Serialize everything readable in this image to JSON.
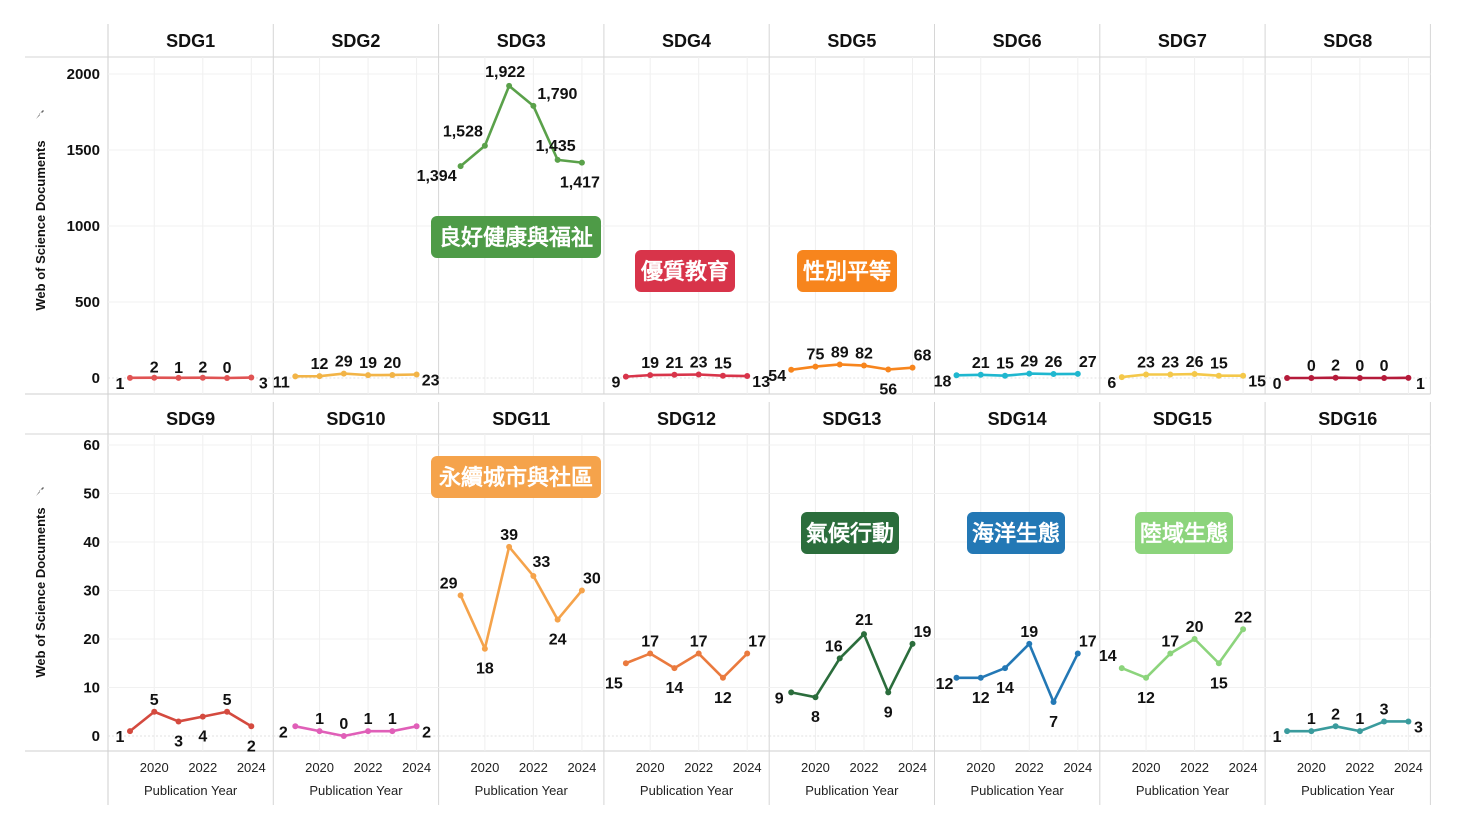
{
  "chart_data": {
    "type": "line",
    "x": [
      2019,
      2020,
      2021,
      2022,
      2023,
      2024
    ],
    "xticks": [
      "2020",
      "2022",
      "2024"
    ],
    "xlabel": "Publication Year",
    "ylabel": "Web of Science Documents",
    "grid": true,
    "rows": [
      {
        "ylim": [
          0,
          2100
        ],
        "yticks": [
          0,
          500,
          1000,
          1500,
          2000
        ],
        "panels": [
          {
            "title": "SDG1",
            "color": "#e05353",
            "values": [
              1,
              2,
              1,
              2,
              0,
              3
            ],
            "badge": "",
            "badge_color": ""
          },
          {
            "title": "SDG2",
            "color": "#f2b447",
            "values": [
              11,
              12,
              29,
              19,
              20,
              23
            ],
            "badge": "",
            "badge_color": ""
          },
          {
            "title": "SDG3",
            "color": "#5aa14a",
            "values": [
              1394,
              1528,
              1922,
              1790,
              1435,
              1417
            ],
            "badge": "良好健康與福祉",
            "badge_color": "#4e9b47"
          },
          {
            "title": "SDG4",
            "color": "#d8344a",
            "values": [
              9,
              19,
              21,
              23,
              15,
              13
            ],
            "badge": "優質教育",
            "badge_color": "#d8344a"
          },
          {
            "title": "SDG5",
            "color": "#f7851d",
            "values": [
              54,
              75,
              89,
              82,
              56,
              68
            ],
            "badge": "性別平等",
            "badge_color": "#f7851d"
          },
          {
            "title": "SDG6",
            "color": "#1fb7cf",
            "values": [
              18,
              21,
              15,
              29,
              26,
              27
            ],
            "badge": "",
            "badge_color": ""
          },
          {
            "title": "SDG7",
            "color": "#f4c84a",
            "values": [
              6,
              23,
              23,
              26,
              15,
              15
            ],
            "badge": "",
            "badge_color": ""
          },
          {
            "title": "SDG8",
            "color": "#b51a3a",
            "values": [
              0,
              0,
              2,
              0,
              0,
              1
            ],
            "badge": "",
            "badge_color": ""
          }
        ]
      },
      {
        "ylim": [
          -2,
          62
        ],
        "yticks": [
          0,
          10,
          20,
          30,
          40,
          50,
          60
        ],
        "panels": [
          {
            "title": "SDG9",
            "color": "#d44a3f",
            "values": [
              1,
              5,
              3,
              4,
              5,
              2
            ],
            "badge": "",
            "badge_color": ""
          },
          {
            "title": "SDG10",
            "color": "#e05fb8",
            "values": [
              2,
              1,
              0,
              1,
              1,
              2
            ],
            "badge": "",
            "badge_color": ""
          },
          {
            "title": "SDG11",
            "color": "#f5a34b",
            "values": [
              29,
              18,
              39,
              33,
              24,
              30
            ],
            "badge": "永續城市與社區",
            "badge_color": "#f5a34b"
          },
          {
            "title": "SDG12",
            "color": "#ea7a3e",
            "values": [
              15,
              17,
              14,
              17,
              12,
              17
            ],
            "badge": "",
            "badge_color": ""
          },
          {
            "title": "SDG13",
            "color": "#2b6d3c",
            "values": [
              9,
              8,
              16,
              21,
              9,
              19
            ],
            "badge": "氣候行動",
            "badge_color": "#2b6d3c"
          },
          {
            "title": "SDG14",
            "color": "#2378b5",
            "values": [
              12,
              12,
              14,
              19,
              7,
              17
            ],
            "badge": "海洋生態",
            "badge_color": "#2378b5"
          },
          {
            "title": "SDG15",
            "color": "#8cd47c",
            "values": [
              14,
              12,
              17,
              20,
              15,
              22
            ],
            "badge": "陸域生態",
            "badge_color": "#8cd47c"
          },
          {
            "title": "SDG16",
            "color": "#3a9b9d",
            "values": [
              1,
              1,
              2,
              1,
              3,
              3
            ],
            "badge": "",
            "badge_color": ""
          }
        ]
      }
    ]
  }
}
